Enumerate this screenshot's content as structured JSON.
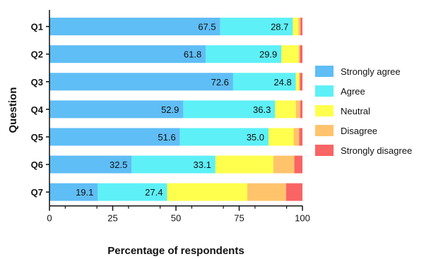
{
  "chart_data": {
    "type": "bar",
    "orientation": "horizontal",
    "stacked": true,
    "categories": [
      "Q1",
      "Q2",
      "Q3",
      "Q4",
      "Q5",
      "Q6",
      "Q7"
    ],
    "series": [
      {
        "name": "Strongly agree",
        "color": "#5fbef5",
        "values": [
          67.5,
          61.8,
          72.6,
          52.9,
          51.6,
          32.5,
          19.1
        ]
      },
      {
        "name": "Agree",
        "color": "#5ef0f7",
        "values": [
          28.7,
          29.9,
          24.8,
          36.3,
          35.0,
          33.1,
          27.4
        ]
      },
      {
        "name": "Neutral",
        "color": "#ffff4d",
        "values": [
          2.2,
          6.8,
          1.3,
          8.2,
          9.9,
          22.9,
          31.7
        ]
      },
      {
        "name": "Disagree",
        "color": "#ffc46b",
        "values": [
          0.8,
          0.5,
          0.3,
          1.7,
          2.2,
          8.3,
          15.3
        ]
      },
      {
        "name": "Strongly disagree",
        "color": "#f96464",
        "values": [
          0.8,
          1.0,
          1.0,
          0.9,
          1.3,
          3.2,
          6.5
        ]
      }
    ],
    "data_labels": [
      [
        "67.5",
        "28.7"
      ],
      [
        "61.8",
        "29.9"
      ],
      [
        "72.6",
        "24.8"
      ],
      [
        "52.9",
        "36.3"
      ],
      [
        "51.6",
        "35.0"
      ],
      [
        "32.5",
        "33.1"
      ],
      [
        "19.1",
        "27.4"
      ]
    ],
    "xlabel": "Percentage of respondents",
    "ylabel": "Question",
    "xlim": [
      0,
      100
    ],
    "xticks": [
      "0",
      "25",
      "50",
      "75",
      "100"
    ],
    "legend_position": "right",
    "grid": false
  }
}
